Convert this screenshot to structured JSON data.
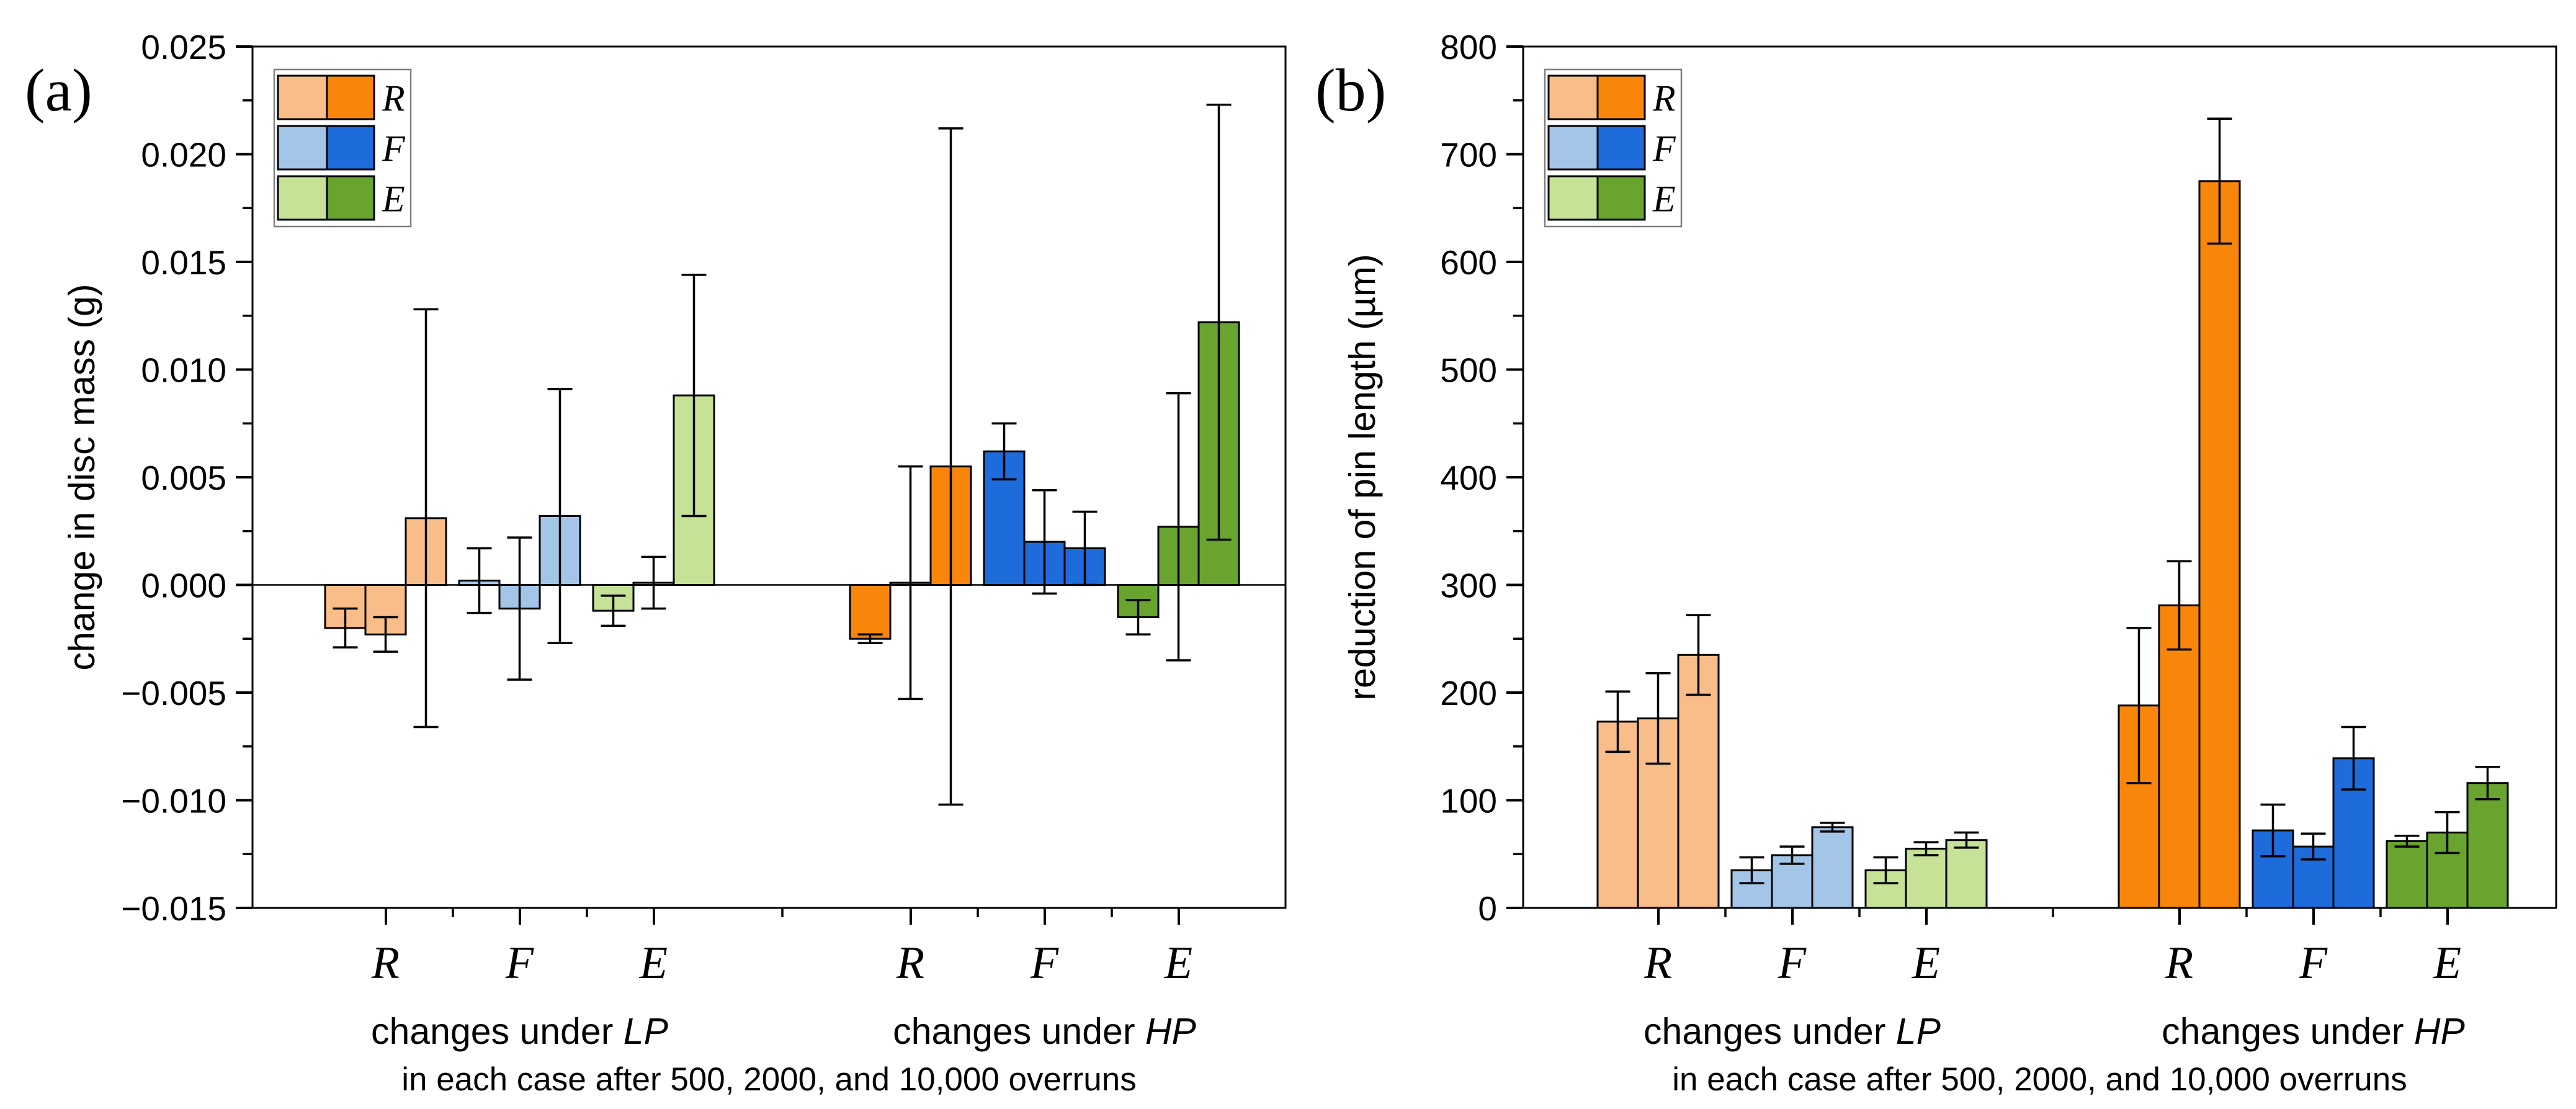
{
  "figure": {
    "background": "#ffffff",
    "frame_color": "#000000",
    "legend_border_color": "#7f7f7f",
    "sub_labels": [
      "R",
      "F",
      "E"
    ],
    "legend": {
      "entries": [
        {
          "label": "R",
          "light": "#F9BD89",
          "dark": "#F8860B"
        },
        {
          "label": "F",
          "light": "#A3C6E8",
          "dark": "#1E6BDC"
        },
        {
          "label": "E",
          "light": "#C6E296",
          "dark": "#69A42E"
        }
      ],
      "position": "top-left-inside"
    },
    "colors": {
      "R": {
        "light": "#F9BD89",
        "dark": "#F8860B"
      },
      "F": {
        "light": "#A3C6E8",
        "dark": "#1E6BDC"
      },
      "E": {
        "light": "#C6E296",
        "dark": "#69A42E"
      }
    }
  },
  "chart_data": [
    {
      "type": "bar",
      "panel_label": "(a)",
      "ylabel": "change in disc mass (g)",
      "ylim": [
        -0.015,
        0.025
      ],
      "ytick_major": 0.005,
      "ytick_minor": 0.0025,
      "ytick_labels": [
        "0.025",
        "0.020",
        "0.015",
        "0.010",
        "0.005",
        "0.000",
        "−0.005",
        "−0.010",
        "−0.015"
      ],
      "zero_line": true,
      "grid": false,
      "x_sub_labels": [
        "R",
        "F",
        "E"
      ],
      "group_labels": [
        {
          "prefix": "changes under ",
          "tag": "LP"
        },
        {
          "prefix": "changes under ",
          "tag": "HP"
        }
      ],
      "caption": "in each case after 500, 2000, and 10,000 overruns",
      "bars_per_letter_meaning": [
        "after 500 overruns",
        "after 2000 overruns",
        "after 10,000 overruns"
      ],
      "groups": [
        {
          "name": "LP",
          "shade": "light",
          "subgroups": [
            {
              "label": "R",
              "values": [
                -0.002,
                -0.0023,
                0.0031
              ],
              "errors": [
                0.0009,
                0.0008,
                0.0097
              ]
            },
            {
              "label": "F",
              "values": [
                0.0002,
                -0.0011,
                0.0032
              ],
              "errors": [
                0.0015,
                0.0033,
                0.0059
              ]
            },
            {
              "label": "E",
              "values": [
                -0.0012,
                0.0001,
                0.0088
              ],
              "errors": [
                0.0007,
                0.0012,
                0.0056
              ]
            }
          ]
        },
        {
          "name": "HP",
          "shade": "dark",
          "subgroups": [
            {
              "label": "R",
              "values": [
                -0.0025,
                0.0001,
                0.0055
              ],
              "errors": [
                0.0002,
                0.0054,
                0.0157
              ]
            },
            {
              "label": "F",
              "values": [
                0.0062,
                0.002,
                0.0017
              ],
              "errors": [
                0.0013,
                0.0024,
                0.0017
              ]
            },
            {
              "label": "E",
              "values": [
                -0.0015,
                0.0027,
                0.0122
              ],
              "errors": [
                0.0008,
                0.0062,
                0.0101
              ]
            }
          ]
        }
      ]
    },
    {
      "type": "bar",
      "panel_label": "(b)",
      "ylabel": "reduction of pin length (µm)",
      "ylim": [
        0,
        800
      ],
      "ytick_major": 100,
      "ytick_minor": 50,
      "ytick_labels": [
        "800",
        "700",
        "600",
        "500",
        "400",
        "300",
        "200",
        "100",
        "0"
      ],
      "zero_line": false,
      "grid": false,
      "x_sub_labels": [
        "R",
        "F",
        "E"
      ],
      "group_labels": [
        {
          "prefix": "changes under ",
          "tag": "LP"
        },
        {
          "prefix": "changes under ",
          "tag": "HP"
        }
      ],
      "caption": "in each case after 500, 2000, and 10,000 overruns",
      "bars_per_letter_meaning": [
        "after 500 overruns",
        "after 2000 overruns",
        "after 10,000 overruns"
      ],
      "groups": [
        {
          "name": "LP",
          "shade": "light",
          "subgroups": [
            {
              "label": "R",
              "values": [
                173,
                176,
                235
              ],
              "errors": [
                28,
                42,
                37
              ]
            },
            {
              "label": "F",
              "values": [
                35,
                49,
                75
              ],
              "errors": [
                12,
                8,
                4
              ]
            },
            {
              "label": "E",
              "values": [
                35,
                55,
                63
              ],
              "errors": [
                12,
                6,
                7
              ]
            }
          ]
        },
        {
          "name": "HP",
          "shade": "dark",
          "subgroups": [
            {
              "label": "R",
              "values": [
                188,
                281,
                675
              ],
              "errors": [
                72,
                41,
                58
              ]
            },
            {
              "label": "F",
              "values": [
                72,
                57,
                139
              ],
              "errors": [
                24,
                12,
                29
              ]
            },
            {
              "label": "E",
              "values": [
                62,
                70,
                116
              ],
              "errors": [
                5,
                19,
                15
              ]
            }
          ]
        }
      ]
    }
  ]
}
